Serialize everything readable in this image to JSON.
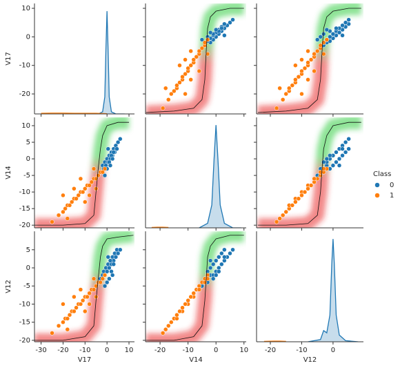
{
  "chart_data": {
    "type": "pairplot",
    "variables": [
      "V17",
      "V14",
      "V12"
    ],
    "xlims": [
      [
        -33,
        12.5
      ],
      [
        -25.2,
        10.8
      ],
      [
        -24.4,
        9.7
      ]
    ],
    "ylims": [
      [
        -27,
        11.7
      ],
      [
        -20.8,
        12.5
      ],
      [
        -20.4,
        10.1
      ]
    ],
    "xticks": [
      [
        -30,
        -20,
        -10,
        0,
        10
      ],
      [
        -20,
        -10,
        0,
        10
      ],
      [
        -20,
        -10,
        0
      ]
    ],
    "yticks": [
      [
        -20,
        -10,
        0,
        10
      ],
      [
        -20,
        -15,
        -10,
        -5,
        0,
        5,
        10
      ],
      [
        -20,
        -15,
        -10,
        -5,
        0,
        5
      ]
    ],
    "legend_title": "Class",
    "series": [
      {
        "name": "0",
        "color": "#1f77b4",
        "V17": [
          -3,
          -2,
          -1.5,
          -1,
          -0.5,
          0,
          0.5,
          1,
          1.5,
          2,
          2.5,
          3,
          3.5,
          4,
          4.5,
          5,
          0,
          1,
          2,
          -1,
          3,
          1.5,
          0.5,
          2.5,
          6
        ],
        "V14": [
          -4,
          -2,
          -3,
          -1,
          -2,
          0,
          -1,
          1,
          0,
          2,
          1,
          3,
          2,
          4,
          3,
          5,
          -3,
          -1,
          1,
          -5,
          2,
          -2,
          3,
          0,
          6
        ],
        "V12": [
          -3,
          -2,
          -1,
          -2,
          0,
          -1,
          1,
          0,
          2,
          1,
          3,
          2,
          4,
          3,
          5,
          4,
          -4,
          -3,
          -1,
          -5,
          1,
          2,
          3,
          -2,
          5
        ],
        "kde": [
          {
            "x": [
              -4,
              -2,
              -1,
              -0.5,
              0,
              0.5,
              1,
              2,
              4,
              8
            ],
            "density": [
              0,
              0.01,
              0.08,
              0.3,
              0.48,
              0.3,
              0.08,
              0.01,
              0,
              0
            ]
          },
          {
            "x": [
              -6,
              -3,
              -1.5,
              -0.7,
              0,
              0.7,
              1.5,
              3,
              6,
              9
            ],
            "density": [
              0,
              0.02,
              0.1,
              0.3,
              0.45,
              0.3,
              0.1,
              0.02,
              0,
              0
            ]
          },
          {
            "x": [
              -8,
              -4,
              -3,
              -2,
              -1,
              -0.4,
              0,
              0.4,
              1,
              2,
              4,
              8
            ],
            "density": [
              0,
              0.01,
              0.05,
              0.04,
              0.12,
              0.35,
              0.46,
              0.35,
              0.12,
              0.03,
              0.005,
              0
            ]
          }
        ]
      },
      {
        "name": "1",
        "color": "#ff7f0e",
        "V17": [
          -25,
          -22,
          -20,
          -19,
          -18,
          -17,
          -16,
          -15,
          -14,
          -13,
          -12,
          -11,
          -10,
          -9,
          -8,
          -7,
          -6,
          -5,
          -4,
          -3,
          -2,
          -1,
          -15,
          -10,
          -20,
          -12,
          -8,
          -5,
          -18,
          -6
        ],
        "V14": [
          -19,
          -17,
          -16,
          -15,
          -14,
          -14,
          -13,
          -12,
          -12,
          -11,
          -10,
          -10,
          -9,
          -8,
          -8,
          -7,
          -6,
          -6,
          -5,
          -4,
          -4,
          -3,
          -9,
          -13,
          -11,
          -6,
          -11,
          -9,
          -18,
          -3
        ],
        "V12": [
          -18,
          -16,
          -15,
          -14,
          -14,
          -13,
          -12,
          -12,
          -11,
          -10,
          -10,
          -9,
          -8,
          -8,
          -7,
          -6,
          -6,
          -5,
          -4,
          -4,
          -3,
          -2,
          -8,
          -12,
          -10,
          -6,
          -10,
          -8,
          -17,
          -3
        ],
        "kde": [
          {
            "x": [
              -30,
              -25,
              -20,
              -15,
              -10,
              -5,
              0
            ],
            "density": [
              0.003,
              0.004,
              0.004,
              0.003,
              0.003,
              0.003,
              0.001
            ]
          },
          {
            "x": [
              -23,
              -21,
              -19,
              -17
            ],
            "density": [
              0.002,
              0.003,
              0.003,
              0.002
            ]
          },
          {
            "x": [
              -22,
              -19,
              -17,
              -15
            ],
            "density": [
              0.002,
              0.003,
              0.003,
              0.002
            ]
          }
        ]
      }
    ],
    "glow_colors": [
      "#e8262a",
      "#2ecc40"
    ],
    "curves": [
      [
        null,
        {
          "x": [
            -25,
            -15,
            -8,
            -5,
            -4,
            -3.5,
            -3,
            -2,
            0,
            5,
            10
          ],
          "y": [
            -26.5,
            -26,
            -25,
            -22,
            -15,
            -5,
            3,
            7,
            9,
            10,
            10
          ]
        },
        {
          "x": [
            -24,
            -15,
            -8,
            -5,
            -4,
            -3.5,
            -3,
            -2,
            0,
            5,
            9
          ],
          "y": [
            -26.5,
            -26,
            -25,
            -22,
            -15,
            -5,
            3,
            7,
            9,
            10,
            10
          ]
        }
      ],
      [
        {
          "x": [
            -33,
            -20,
            -10,
            -6,
            -5,
            -4,
            -3,
            -2,
            0,
            5,
            10
          ],
          "y": [
            -20,
            -20,
            -19.5,
            -17,
            -10,
            -3,
            3,
            7,
            10,
            11,
            11
          ]
        },
        null,
        {
          "x": [
            -24,
            -15,
            -8,
            -5,
            -4,
            -3.5,
            -3,
            -2,
            0,
            5,
            9
          ],
          "y": [
            -20,
            -20,
            -19.5,
            -17,
            -10,
            -3,
            3,
            7,
            10,
            11,
            11
          ]
        }
      ],
      [
        {
          "x": [
            -33,
            -20,
            -10,
            -6,
            -5,
            -4,
            -3,
            -2,
            0,
            5,
            12
          ],
          "y": [
            -20,
            -20,
            -19,
            -16,
            -9,
            -3,
            3,
            6,
            8,
            8.5,
            9
          ]
        },
        {
          "x": [
            -25,
            -15,
            -8,
            -5,
            -4,
            -3.5,
            -3,
            -2,
            0,
            5,
            10
          ],
          "y": [
            -20,
            -20,
            -19,
            -16,
            -9,
            -3,
            3,
            6,
            8,
            9,
            9
          ]
        },
        null
      ]
    ]
  }
}
